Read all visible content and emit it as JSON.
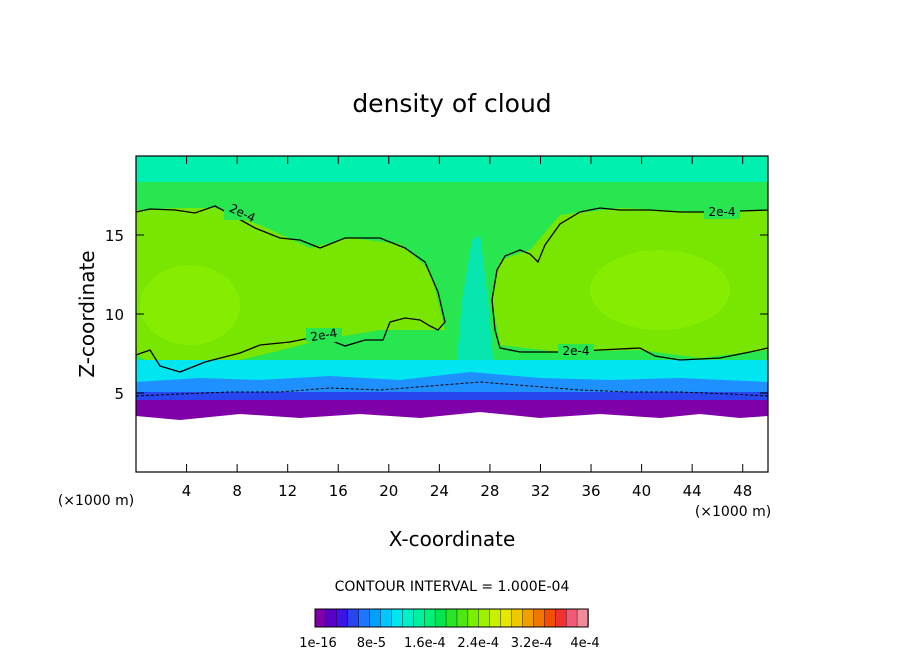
{
  "chart_data": {
    "type": "heatmap",
    "title": "density of cloud",
    "xlabel": "X-coordinate",
    "ylabel": "Z-coordinate",
    "x_unit": "(×1000 m)",
    "y_unit": "(×1000 m)",
    "xlim": [
      0,
      50
    ],
    "ylim": [
      0,
      20
    ],
    "x_ticks": [
      "4",
      "8",
      "12",
      "16",
      "20",
      "24",
      "28",
      "32",
      "36",
      "40",
      "44",
      "48"
    ],
    "y_ticks": [
      "5",
      "10",
      "15"
    ],
    "contour_interval": "CONTOUR INTERVAL = 1.000E-04",
    "contour_label": "2e-4",
    "colorbar_labels": [
      "1e-16",
      "8e-5",
      "1.6e-4",
      "2.4e-4",
      "3.2e-4",
      "4e-4"
    ],
    "colorbar_colors": [
      "#7f00a8",
      "#5a00c8",
      "#3c14e6",
      "#2846f0",
      "#1e78ff",
      "#00a0ff",
      "#00c8ff",
      "#00e6f0",
      "#00f0c8",
      "#00f0a0",
      "#00f078",
      "#00e650",
      "#28e628",
      "#50e614",
      "#78f000",
      "#a0f000",
      "#c8f000",
      "#e6e600",
      "#f0c800",
      "#f0a000",
      "#f07800",
      "#f05000",
      "#f03232",
      "#f05a78",
      "#f08c9a"
    ]
  }
}
